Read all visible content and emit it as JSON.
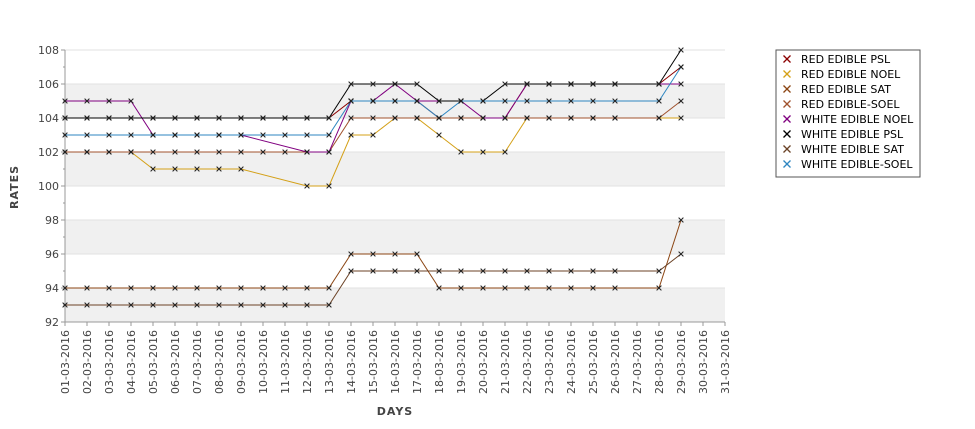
{
  "chart_data": {
    "type": "line",
    "title": "",
    "xlabel": "DAYS",
    "ylabel": "RATES",
    "ylim": [
      92,
      108
    ],
    "yticks": [
      92,
      94,
      96,
      98,
      100,
      102,
      104,
      106,
      108
    ],
    "grid": "alternating horizontal bands",
    "legend_position": "right",
    "x": [
      "01-03-2016",
      "02-03-2016",
      "03-03-2016",
      "04-03-2016",
      "05-03-2016",
      "06-03-2016",
      "07-03-2016",
      "08-03-2016",
      "09-03-2016",
      "10-03-2016",
      "11-03-2016",
      "12-03-2016",
      "13-03-2016",
      "14-03-2016",
      "15-03-2016",
      "16-03-2016",
      "17-03-2016",
      "18-03-2016",
      "19-03-2016",
      "20-03-2016",
      "21-03-2016",
      "22-03-2016",
      "23-03-2016",
      "24-03-2016",
      "25-03-2016",
      "26-03-2016",
      "27-03-2016",
      "28-03-2016",
      "29-03-2016",
      "30-03-2016",
      "31-03-2016"
    ],
    "series": [
      {
        "name": "RED EDIBLE  PSL",
        "color": "#8b0000",
        "values": [
          104,
          104,
          104,
          104,
          104,
          104,
          104,
          104,
          104,
          104,
          104,
          104,
          104,
          105,
          105,
          105,
          105,
          104,
          104,
          104,
          104,
          106,
          106,
          106,
          106,
          106,
          null,
          106,
          107,
          null,
          null
        ]
      },
      {
        "name": "RED EDIBLE NOEL",
        "color": "#d4a017",
        "values": [
          102,
          102,
          102,
          102,
          101,
          101,
          101,
          101,
          101,
          null,
          null,
          100,
          100,
          103,
          103,
          104,
          104,
          103,
          102,
          102,
          102,
          104,
          104,
          104,
          104,
          104,
          null,
          104,
          104,
          null,
          null
        ]
      },
      {
        "name": "RED EDIBLE SAT",
        "color": "#8b4513",
        "values": [
          94,
          94,
          94,
          94,
          94,
          94,
          94,
          94,
          94,
          94,
          94,
          94,
          94,
          96,
          96,
          96,
          96,
          94,
          94,
          94,
          94,
          94,
          94,
          94,
          94,
          94,
          null,
          94,
          98,
          null,
          null
        ]
      },
      {
        "name": "RED EDIBLE-SOEL",
        "color": "#a0522d",
        "values": [
          102,
          102,
          102,
          102,
          102,
          102,
          102,
          102,
          102,
          102,
          102,
          102,
          102,
          104,
          104,
          104,
          104,
          104,
          104,
          104,
          104,
          104,
          104,
          104,
          104,
          104,
          null,
          104,
          105,
          null,
          null
        ]
      },
      {
        "name": "WHITE EDIBLE NOEL",
        "color": "#800080",
        "values": [
          105,
          105,
          105,
          105,
          103,
          103,
          103,
          103,
          103,
          null,
          null,
          102,
          102,
          105,
          105,
          106,
          105,
          105,
          105,
          104,
          104,
          106,
          106,
          106,
          106,
          106,
          null,
          106,
          106,
          null,
          null
        ]
      },
      {
        "name": "WHITE EDIBLE PSL",
        "color": "#000000",
        "values": [
          104,
          104,
          104,
          104,
          104,
          104,
          104,
          104,
          104,
          104,
          104,
          104,
          104,
          106,
          106,
          106,
          106,
          105,
          105,
          105,
          106,
          106,
          106,
          106,
          106,
          106,
          null,
          106,
          108,
          null,
          null
        ]
      },
      {
        "name": "WHITE EDIBLE SAT",
        "color": "#6b4226",
        "values": [
          93,
          93,
          93,
          93,
          93,
          93,
          93,
          93,
          93,
          93,
          93,
          93,
          93,
          95,
          95,
          95,
          95,
          95,
          95,
          95,
          95,
          95,
          95,
          95,
          95,
          95,
          null,
          95,
          96,
          null,
          null
        ]
      },
      {
        "name": "WHITE EDIBLE-SOEL",
        "color": "#2e86c1",
        "values": [
          103,
          103,
          103,
          103,
          103,
          103,
          103,
          103,
          103,
          103,
          103,
          103,
          103,
          105,
          105,
          105,
          105,
          104,
          105,
          105,
          105,
          105,
          105,
          105,
          105,
          105,
          null,
          105,
          107,
          null,
          null
        ]
      }
    ]
  }
}
